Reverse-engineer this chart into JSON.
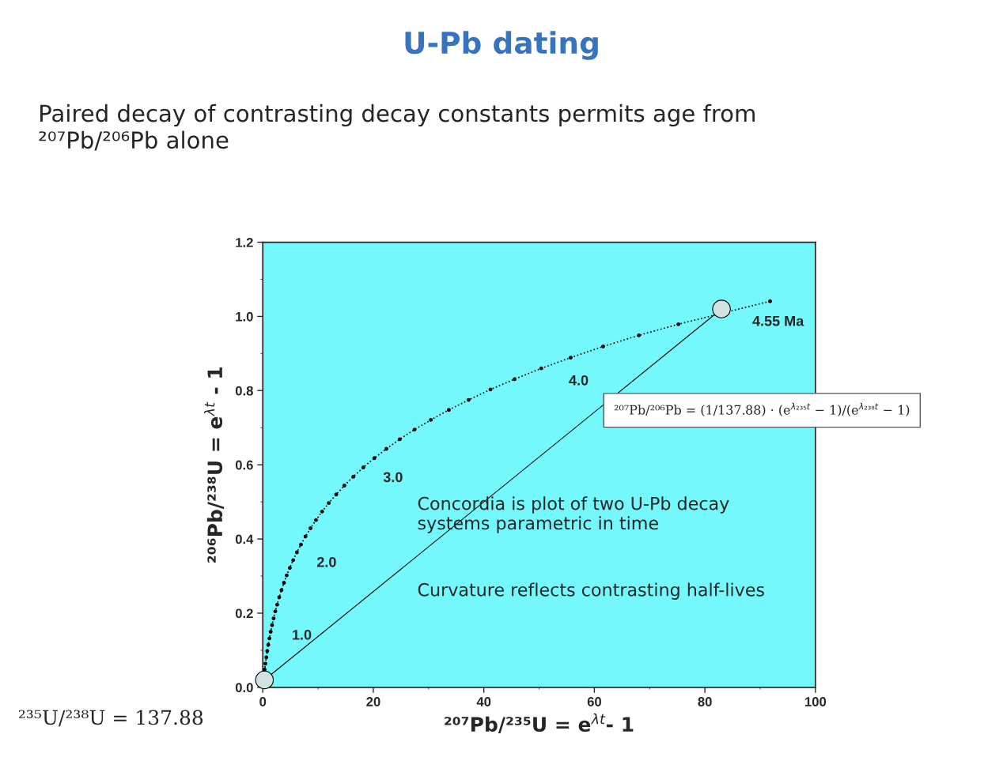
{
  "chart_data": {
    "type": "line",
    "title": "U-Pb dating",
    "subtitle": "Paired decay of contrasting decay constants permits age from\n²⁰⁷Pb/²⁰⁶Pb alone",
    "xlabel": "²⁰⁷Pb/²³⁵U = e$^{λt}$- 1",
    "ylabel": "²⁰⁶Pb/²³⁸U = e$^{λt}$ - 1",
    "xlim": [
      0,
      100
    ],
    "xticks": [
      0,
      20,
      40,
      60,
      80,
      100
    ],
    "ylim": [
      0,
      1.2
    ],
    "yticks": [
      {
        "value": 0,
        "label": "0.0"
      },
      {
        "value": 0.2,
        "label": "0.2"
      },
      {
        "value": 0.4,
        "label": "0.4"
      },
      {
        "value": 0.6,
        "label": "0.6"
      },
      {
        "value": 0.8,
        "label": "0.8"
      },
      {
        "value": 1.0,
        "label": "1.0"
      },
      {
        "value": 1.2,
        "label": "1.2"
      }
    ],
    "grid": false,
    "legend": false,
    "series": [
      {
        "color": "#000000",
        "marker": "circle",
        "line_style": "dotted",
        "x": [
          0.1,
          0.22,
          0.34,
          0.48,
          0.64,
          0.81,
          0.99,
          1.2,
          1.43,
          1.68,
          1.95,
          2.26,
          2.6,
          2.97,
          3.38,
          3.83,
          4.33,
          4.89,
          5.5,
          6.17,
          6.91,
          7.73,
          8.63,
          9.63,
          10.73,
          11.94,
          13.28,
          14.76,
          16.39,
          18.19,
          20.18,
          22.37,
          24.79,
          27.46,
          30.41,
          33.66,
          37.24,
          41.2,
          45.57,
          50.39,
          55.71,
          61.58,
          68.06,
          75.2,
          83.09,
          91.79
        ],
        "values": [
          0.016,
          0.032,
          0.048,
          0.064,
          0.081,
          0.098,
          0.115,
          0.132,
          0.15,
          0.168,
          0.186,
          0.205,
          0.223,
          0.243,
          0.262,
          0.282,
          0.302,
          0.322,
          0.343,
          0.364,
          0.385,
          0.407,
          0.429,
          0.451,
          0.474,
          0.497,
          0.52,
          0.544,
          0.568,
          0.593,
          0.618,
          0.643,
          0.669,
          0.695,
          0.721,
          0.748,
          0.775,
          0.803,
          0.831,
          0.86,
          0.889,
          0.919,
          0.949,
          0.979,
          null,
          1.041
        ]
      },
      {
        "color": "#d0e2e2",
        "marker": "circle",
        "line_style": "solid",
        "x": [
          0.3,
          83.0
        ],
        "values": [
          0.02,
          1.02
        ]
      }
    ],
    "annotations": [
      {
        "text": "1.0",
        "x": 1.68,
        "y": 0.168
      },
      {
        "text": "2.0",
        "x": 6.17,
        "y": 0.364
      },
      {
        "text": "3.0",
        "x": 18.19,
        "y": 0.593
      },
      {
        "text": "4.0",
        "x": 50.39,
        "y": 0.86
      },
      {
        "text": "4.55 Ma",
        "x": 83.0,
        "y": 1.02
      },
      "Concordia is plot of two U-Pb decay\nsystems parametric in time",
      "Curvature reflects contrasting half-lives",
      "²⁰⁷Pb/²⁰⁶Pb = (1/137.88) · (e$^{λ₂₃₅t}$ − 1)/(e$^{λ₂₃₈t}$ − 1)",
      "²³⁵U/²³⁸U = 137.88"
    ]
  }
}
